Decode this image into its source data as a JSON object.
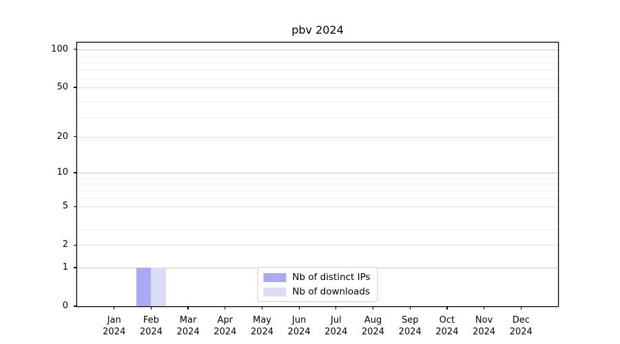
{
  "chart_data": {
    "type": "bar",
    "title": "pbv 2024",
    "categories": [
      "Jan",
      "Feb",
      "Mar",
      "Apr",
      "May",
      "Jun",
      "Jul",
      "Aug",
      "Sep",
      "Oct",
      "Nov",
      "Dec"
    ],
    "category_year": "2024",
    "series": [
      {
        "name": "Nb of distinct IPs",
        "color": "#a9a9f6",
        "values": [
          0,
          1,
          0,
          0,
          0,
          0,
          0,
          0,
          0,
          0,
          0,
          0
        ]
      },
      {
        "name": "Nb of downloads",
        "color": "#dcdcf9",
        "values": [
          0,
          1,
          0,
          0,
          0,
          0,
          0,
          0,
          0,
          0,
          0,
          0
        ]
      }
    ],
    "y_scale": "log1p",
    "y_ticks": [
      0,
      1,
      2,
      5,
      10,
      20,
      50,
      100
    ],
    "ylim": [
      0,
      113
    ],
    "xlabel": "",
    "ylabel": "",
    "grid": {
      "emphasized_values": [
        1,
        10,
        100
      ],
      "emphasized_color": "#c6c6c6",
      "labeled_values": [
        2,
        5,
        20,
        50
      ],
      "labeled_color": "#e0e0e0",
      "minor_values": [
        2,
        3,
        5,
        6,
        7,
        8,
        9,
        19,
        29,
        39,
        49,
        59,
        69,
        79,
        89,
        109
      ],
      "minor_color": "#efefef"
    },
    "legend_position": "lower center",
    "axis_color": "#000000",
    "bar_width_fraction": 0.4
  }
}
